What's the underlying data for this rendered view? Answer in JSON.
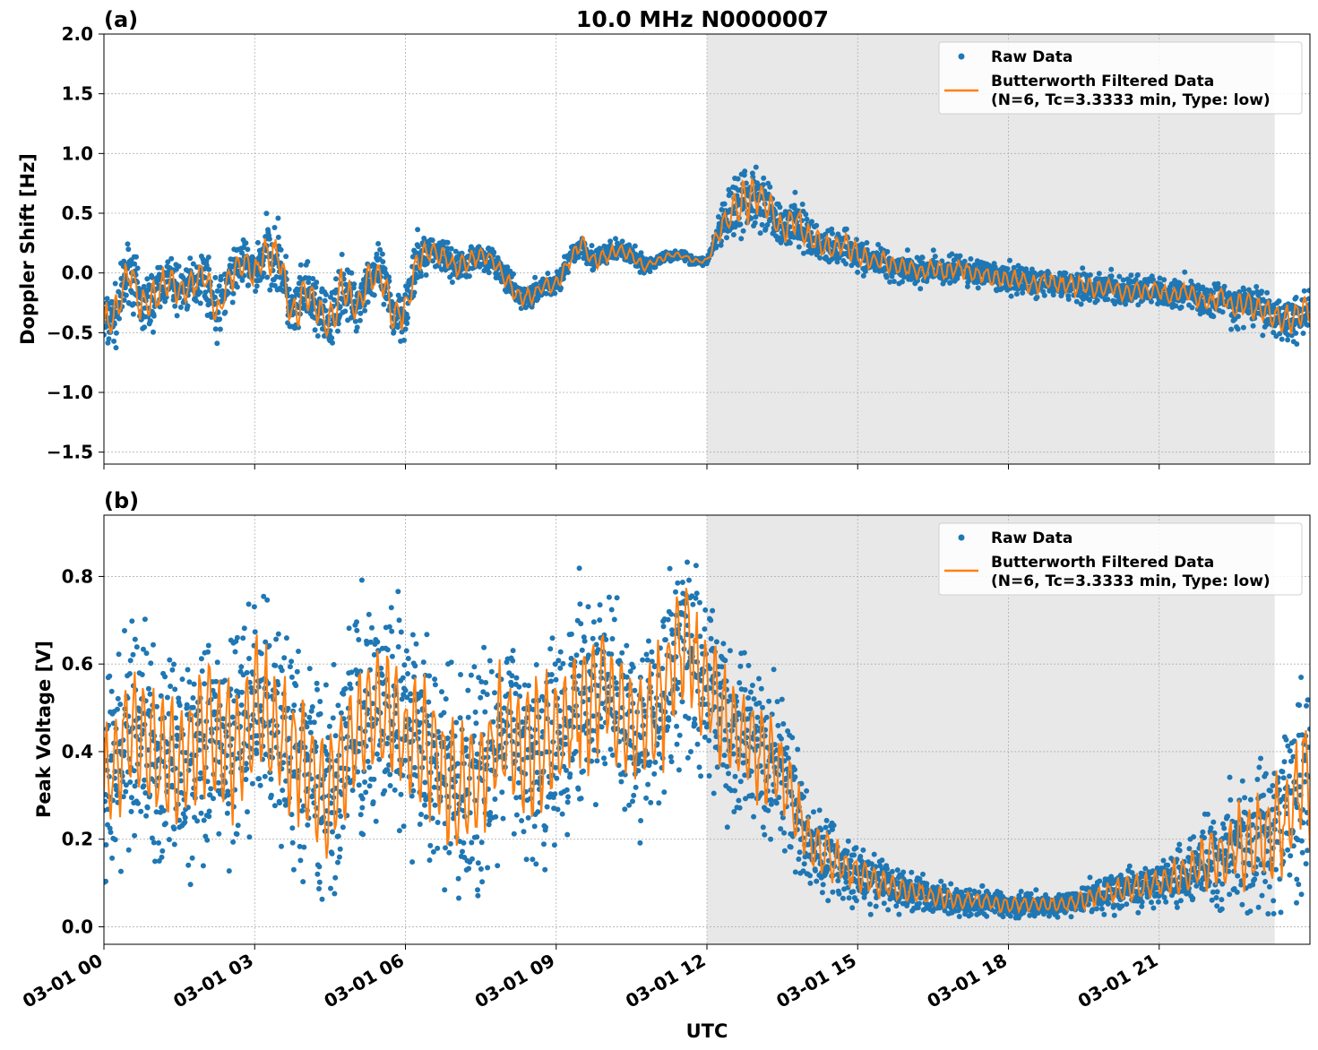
{
  "chart_data": {
    "title": "10.0 MHz N0000007",
    "xlabel": "UTC",
    "x_unit": "hours UTC on 03-01",
    "xlim": [
      0,
      24
    ],
    "x_ticks": [
      0,
      3,
      6,
      9,
      12,
      15,
      18,
      21
    ],
    "x_tick_labels": [
      "03-01 00",
      "03-01 03",
      "03-01 06",
      "03-01 09",
      "03-01 12",
      "03-01 15",
      "03-01 18",
      "03-01 21"
    ],
    "shaded_region": [
      12,
      23.3
    ],
    "colors": {
      "raw": "#1f77b4",
      "filtered": "#ff7f0e",
      "shade": "#e8e8e8",
      "grid": "#b0b0b0"
    },
    "grid": true,
    "legend_position": "top-right",
    "panels": [
      {
        "label": "(a)",
        "type": "scatter+line",
        "ylabel": "Doppler Shift [Hz]",
        "ylim": [
          -1.6,
          2.0
        ],
        "y_ticks": [
          -1.5,
          -1.0,
          -0.5,
          0.0,
          0.5,
          1.0,
          1.5,
          2.0
        ],
        "y_tick_labels": [
          "−1.5",
          "−1.0",
          "−0.5",
          "0.0",
          "0.5",
          "1.0",
          "1.5",
          "2.0"
        ],
        "legend": {
          "raw": "Raw Data",
          "filtered_line1": "Butterworth Filtered Data",
          "filtered_line2": "(N=6, Tc=3.3333 min, Type: low)"
        },
        "series": [
          {
            "name": "Butterworth Filtered Data",
            "kind": "line",
            "x": [
              0,
              0.25,
              0.5,
              0.75,
              1.0,
              1.25,
              1.5,
              1.75,
              2.0,
              2.25,
              2.5,
              2.75,
              3.0,
              3.25,
              3.5,
              3.75,
              4.0,
              4.25,
              4.5,
              4.75,
              5.0,
              5.25,
              5.5,
              5.75,
              6.0,
              6.25,
              6.5,
              6.75,
              7.0,
              7.25,
              7.5,
              7.75,
              8.0,
              8.25,
              8.5,
              8.75,
              9.0,
              9.25,
              9.5,
              9.75,
              10.0,
              10.25,
              10.5,
              10.75,
              11.0,
              11.25,
              11.5,
              11.75,
              12.0,
              12.25,
              12.5,
              12.75,
              13.0,
              13.25,
              13.5,
              13.75,
              14.0,
              14.25,
              14.5,
              14.75,
              15.0,
              15.25,
              15.5,
              15.75,
              16.0,
              16.25,
              16.5,
              16.75,
              17.0,
              17.25,
              17.5,
              17.75,
              18.0,
              18.25,
              18.5,
              18.75,
              19.0,
              19.25,
              19.5,
              19.75,
              20.0,
              20.25,
              20.5,
              20.75,
              21.0,
              21.25,
              21.5,
              21.75,
              22.0,
              22.25,
              22.5,
              22.75,
              23.0,
              23.25,
              23.5,
              23.75,
              24.0
            ],
            "y": [
              -0.45,
              -0.35,
              0.05,
              -0.3,
              -0.2,
              -0.05,
              -0.15,
              -0.1,
              0.0,
              -0.35,
              -0.05,
              0.1,
              0.0,
              0.2,
              0.1,
              -0.4,
              -0.15,
              -0.3,
              -0.45,
              -0.1,
              -0.3,
              -0.05,
              0.0,
              -0.35,
              -0.3,
              0.1,
              0.2,
              0.15,
              0.05,
              0.1,
              0.15,
              0.1,
              -0.05,
              -0.2,
              -0.2,
              -0.1,
              -0.1,
              0.1,
              0.25,
              0.1,
              0.15,
              0.2,
              0.15,
              0.05,
              0.1,
              0.15,
              0.15,
              0.1,
              0.1,
              0.35,
              0.5,
              0.6,
              0.65,
              0.55,
              0.35,
              0.45,
              0.3,
              0.25,
              0.2,
              0.25,
              0.15,
              0.1,
              0.1,
              0.05,
              0.05,
              0.0,
              0.05,
              0.0,
              0.05,
              0.0,
              0.0,
              -0.05,
              -0.05,
              -0.05,
              -0.1,
              -0.05,
              -0.1,
              -0.1,
              -0.1,
              -0.15,
              -0.1,
              -0.15,
              -0.15,
              -0.15,
              -0.15,
              -0.2,
              -0.15,
              -0.2,
              -0.25,
              -0.2,
              -0.3,
              -0.25,
              -0.3,
              -0.35,
              -0.4,
              -0.35,
              -0.3
            ]
          },
          {
            "name": "Raw Data",
            "kind": "scatter",
            "spread": [
              0.35,
              0.35,
              0.35,
              0.35,
              0.35,
              0.3,
              0.3,
              0.3,
              0.3,
              0.35,
              0.3,
              0.3,
              0.3,
              0.4,
              0.4,
              0.4,
              0.35,
              0.35,
              0.4,
              0.35,
              0.3,
              0.3,
              0.3,
              0.35,
              0.35,
              0.3,
              0.2,
              0.2,
              0.2,
              0.2,
              0.15,
              0.15,
              0.15,
              0.15,
              0.15,
              0.15,
              0.15,
              0.15,
              0.15,
              0.15,
              0.15,
              0.12,
              0.12,
              0.1,
              0.08,
              0.06,
              0.05,
              0.05,
              0.05,
              0.2,
              0.35,
              0.45,
              0.35,
              0.3,
              0.25,
              0.35,
              0.25,
              0.22,
              0.22,
              0.2,
              0.2,
              0.2,
              0.18,
              0.18,
              0.18,
              0.18,
              0.18,
              0.18,
              0.18,
              0.18,
              0.18,
              0.18,
              0.18,
              0.18,
              0.18,
              0.18,
              0.18,
              0.18,
              0.18,
              0.18,
              0.18,
              0.18,
              0.18,
              0.18,
              0.18,
              0.18,
              0.18,
              0.18,
              0.2,
              0.2,
              0.22,
              0.22,
              0.24,
              0.25,
              0.28,
              0.3,
              0.3
            ]
          }
        ]
      },
      {
        "label": "(b)",
        "type": "scatter+line",
        "ylabel": "Peak Voltage [V]",
        "ylim": [
          -0.04,
          0.94
        ],
        "y_ticks": [
          0.0,
          0.2,
          0.4,
          0.6,
          0.8
        ],
        "y_tick_labels": [
          "0.0",
          "0.2",
          "0.4",
          "0.6",
          "0.8"
        ],
        "legend": {
          "raw": "Raw Data",
          "filtered_line1": "Butterworth Filtered Data",
          "filtered_line2": "(N=6, Tc=3.3333 min, Type: low)"
        },
        "series": [
          {
            "name": "Butterworth Filtered Data",
            "kind": "line",
            "x": [
              0,
              0.5,
              1.0,
              1.5,
              2.0,
              2.5,
              3.0,
              3.5,
              4.0,
              4.5,
              5.0,
              5.5,
              6.0,
              6.5,
              7.0,
              7.5,
              8.0,
              8.5,
              9.0,
              9.5,
              10.0,
              10.5,
              11.0,
              11.5,
              12.0,
              12.5,
              13.0,
              13.5,
              14.0,
              14.5,
              15.0,
              15.5,
              16.0,
              16.5,
              17.0,
              17.5,
              18.0,
              18.5,
              19.0,
              19.5,
              20.0,
              20.5,
              21.0,
              21.5,
              22.0,
              22.5,
              23.0,
              23.5,
              24.0
            ],
            "y": [
              0.3,
              0.45,
              0.4,
              0.35,
              0.45,
              0.4,
              0.5,
              0.45,
              0.35,
              0.3,
              0.45,
              0.5,
              0.45,
              0.4,
              0.3,
              0.35,
              0.45,
              0.4,
              0.45,
              0.5,
              0.55,
              0.45,
              0.5,
              0.65,
              0.55,
              0.45,
              0.4,
              0.35,
              0.2,
              0.15,
              0.12,
              0.1,
              0.08,
              0.07,
              0.06,
              0.06,
              0.05,
              0.05,
              0.05,
              0.06,
              0.08,
              0.09,
              0.1,
              0.12,
              0.15,
              0.18,
              0.2,
              0.25,
              0.35
            ]
          },
          {
            "name": "Raw Data",
            "kind": "scatter",
            "spread": [
              0.3,
              0.35,
              0.35,
              0.35,
              0.35,
              0.35,
              0.35,
              0.35,
              0.35,
              0.35,
              0.35,
              0.35,
              0.35,
              0.35,
              0.35,
              0.35,
              0.35,
              0.35,
              0.35,
              0.35,
              0.35,
              0.35,
              0.35,
              0.35,
              0.3,
              0.3,
              0.28,
              0.25,
              0.15,
              0.12,
              0.1,
              0.08,
              0.06,
              0.05,
              0.05,
              0.04,
              0.04,
              0.04,
              0.04,
              0.05,
              0.06,
              0.07,
              0.08,
              0.1,
              0.15,
              0.2,
              0.25,
              0.3,
              0.35
            ]
          }
        ]
      }
    ]
  }
}
